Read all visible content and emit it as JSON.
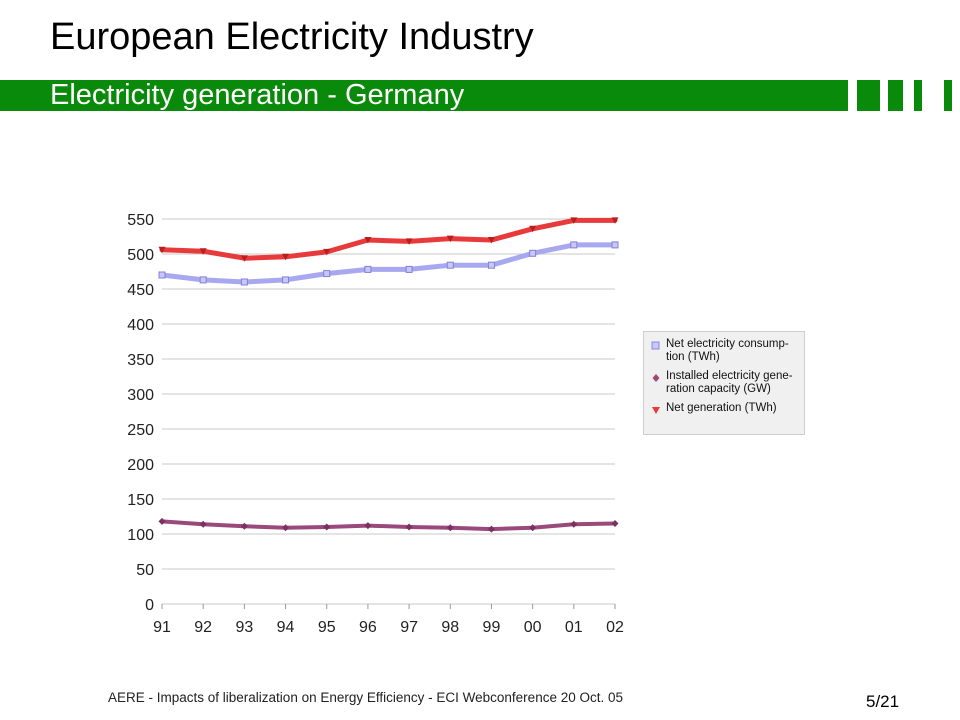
{
  "slide": {
    "title": "European Electricity Industry",
    "subtitle": "Electricity generation - Germany",
    "footer": "AERE - Impacts of liberalization on Energy Efficiency - ECI Webconference 20 Oct. 05",
    "page": "5/21",
    "accent_color": "#0a8a0a"
  },
  "chart_data": {
    "type": "line",
    "categories": [
      "91",
      "92",
      "93",
      "94",
      "95",
      "96",
      "97",
      "98",
      "99",
      "00",
      "01",
      "02"
    ],
    "ylim": [
      0,
      550
    ],
    "yticks": [
      "0",
      "50",
      "100",
      "150",
      "200",
      "250",
      "300",
      "350",
      "400",
      "450",
      "500",
      "550"
    ],
    "grid": true,
    "legend": "right",
    "series": [
      {
        "name": "Net electricity consump-tion (TWh)",
        "legend_lines": [
          "Net electricity consump-",
          "tion (TWh)"
        ],
        "color": "#a8a8f0",
        "marker": "square",
        "values": [
          470,
          463,
          460,
          463,
          472,
          478,
          478,
          484,
          484,
          501,
          513,
          513
        ]
      },
      {
        "name": "Installed electricity gene-ration capacity (GW)",
        "legend_lines": [
          "Installed electricity gene-",
          "ration capacity (GW)"
        ],
        "color": "#9a4a7a",
        "marker": "diamond",
        "values": [
          118,
          114,
          111,
          109,
          110,
          112,
          110,
          109,
          107,
          109,
          114,
          115
        ]
      },
      {
        "name": "Net generation (TWh)",
        "legend_lines": [
          "Net generation (TWh)"
        ],
        "color": "#e83a3a",
        "marker": "triangle",
        "values": [
          506,
          504,
          494,
          496,
          503,
          520,
          518,
          522,
          520,
          536,
          548,
          548
        ]
      }
    ]
  }
}
